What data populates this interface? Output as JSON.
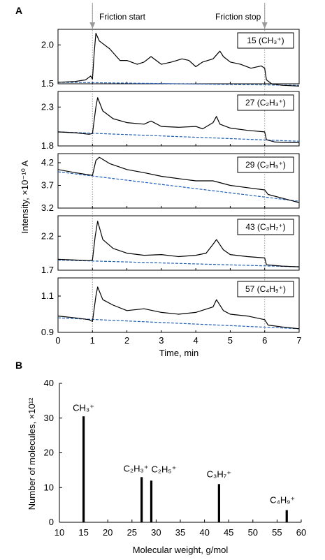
{
  "chart_data": [
    {
      "type": "line",
      "panel_label": "A",
      "annotations": [
        "Friction start",
        "Friction stop"
      ],
      "marker_times": [
        1,
        6
      ],
      "xlabel": "Time, min",
      "ylabel": "Intensity, ×10⁻¹⁰ A",
      "xlim": [
        0,
        7
      ],
      "xticks": [
        "0",
        "1",
        "2",
        "3",
        "4",
        "5",
        "6",
        "7"
      ],
      "subplots": [
        {
          "label": "15 (CH₃⁺)",
          "ylim": [
            1.5,
            2.2
          ],
          "yticks": [
            1.5,
            2.0
          ],
          "ytick_labels": [
            "1.5",
            "2.0"
          ],
          "baseline": {
            "x": [
              0,
              7
            ],
            "y": [
              1.52,
              1.48
            ]
          },
          "series": {
            "x": [
              0,
              0.5,
              0.8,
              0.95,
              1.0,
              1.05,
              1.1,
              1.2,
              1.5,
              1.8,
              2.0,
              2.3,
              2.5,
              2.7,
              3.0,
              3.3,
              3.6,
              3.8,
              4.0,
              4.2,
              4.5,
              4.7,
              4.8,
              5.0,
              5.3,
              5.6,
              5.9,
              6.0,
              6.05,
              6.2,
              6.5,
              7.0
            ],
            "y": [
              1.52,
              1.53,
              1.55,
              1.6,
              1.56,
              1.9,
              2.15,
              2.05,
              1.95,
              1.8,
              1.8,
              1.75,
              1.78,
              1.85,
              1.75,
              1.78,
              1.82,
              1.8,
              1.72,
              1.78,
              1.82,
              1.92,
              1.85,
              1.78,
              1.75,
              1.7,
              1.73,
              1.7,
              1.55,
              1.5,
              1.48,
              1.47
            ]
          }
        },
        {
          "label": "27 (C₂H₃⁺)",
          "ylim": [
            1.8,
            2.5
          ],
          "yticks": [
            1.8,
            2.3
          ],
          "ytick_labels": [
            "1.8",
            "2.3"
          ],
          "baseline": {
            "x": [
              0,
              7
            ],
            "y": [
              1.98,
              1.86
            ]
          },
          "series": {
            "x": [
              0,
              0.5,
              0.9,
              1.0,
              1.1,
              1.15,
              1.3,
              1.6,
              2.0,
              2.5,
              2.7,
              3.0,
              3.5,
              4.0,
              4.2,
              4.5,
              4.6,
              4.7,
              5.0,
              5.5,
              6.0,
              6.05,
              6.3,
              7.0
            ],
            "y": [
              1.98,
              1.97,
              1.95,
              1.96,
              2.3,
              2.42,
              2.25,
              2.15,
              2.1,
              2.08,
              2.12,
              2.05,
              2.04,
              2.05,
              2.02,
              2.1,
              2.18,
              2.08,
              2.03,
              2.0,
              1.98,
              1.88,
              1.85,
              1.84
            ]
          }
        },
        {
          "label": "29 (C₂H₅⁺)",
          "ylim": [
            3.2,
            4.4
          ],
          "yticks": [
            3.2,
            3.7,
            4.2
          ],
          "ytick_labels": [
            "3.2",
            "3.7",
            "4.2"
          ],
          "baseline": {
            "x": [
              0,
              7
            ],
            "y": [
              4.0,
              3.35
            ]
          },
          "series": {
            "x": [
              0,
              0.5,
              1.0,
              1.1,
              1.2,
              1.5,
              2.0,
              2.5,
              3.0,
              3.5,
              4.0,
              4.5,
              5.0,
              5.5,
              6.0,
              6.1,
              6.5,
              7.0
            ],
            "y": [
              4.05,
              3.98,
              3.92,
              4.25,
              4.32,
              4.18,
              4.05,
              3.98,
              3.9,
              3.85,
              3.8,
              3.8,
              3.7,
              3.65,
              3.6,
              3.5,
              3.42,
              3.32
            ]
          }
        },
        {
          "label": "43 (C₃H₇⁺)",
          "ylim": [
            1.7,
            2.5
          ],
          "yticks": [
            1.7,
            2.2
          ],
          "ytick_labels": [
            "1.7",
            "2.2"
          ],
          "baseline": {
            "x": [
              0,
              7
            ],
            "y": [
              1.85,
              1.75
            ]
          },
          "series": {
            "x": [
              0,
              0.5,
              0.9,
              1.0,
              1.08,
              1.15,
              1.3,
              1.6,
              2.0,
              2.5,
              3.0,
              3.5,
              4.0,
              4.3,
              4.5,
              4.6,
              4.8,
              5.0,
              5.5,
              6.0,
              6.05,
              6.5,
              7.0
            ],
            "y": [
              1.86,
              1.85,
              1.84,
              1.85,
              2.2,
              2.42,
              2.15,
              2.02,
              1.95,
              1.92,
              1.93,
              1.9,
              1.92,
              1.95,
              2.08,
              2.15,
              2.0,
              1.93,
              1.9,
              1.88,
              1.78,
              1.76,
              1.75
            ]
          }
        },
        {
          "label": "57 (C₄H₉⁺)",
          "ylim": [
            0.9,
            1.2
          ],
          "yticks": [
            0.9,
            1.1
          ],
          "ytick_labels": [
            "0.9",
            "1.1"
          ],
          "baseline": {
            "x": [
              0,
              7
            ],
            "y": [
              0.98,
              0.92
            ]
          },
          "series": {
            "x": [
              0,
              0.5,
              0.9,
              1.0,
              1.1,
              1.15,
              1.3,
              1.6,
              2.0,
              2.5,
              3.0,
              3.5,
              4.0,
              4.5,
              4.6,
              4.8,
              5.0,
              5.5,
              6.0,
              6.1,
              6.5,
              7.0
            ],
            "y": [
              0.99,
              0.98,
              0.97,
              0.96,
              1.1,
              1.15,
              1.08,
              1.05,
              1.02,
              1.03,
              1.01,
              1.0,
              1.01,
              1.04,
              1.08,
              1.02,
              1.0,
              0.99,
              0.97,
              0.94,
              0.93,
              0.92
            ]
          }
        }
      ],
      "colors": {
        "trace": "#000000",
        "baseline": "#1f5fbf",
        "marker": "#9a9a9a"
      }
    },
    {
      "type": "bar",
      "panel_label": "B",
      "xlabel": "Molecular weight, g/mol",
      "ylabel": "Number of molecules, ×10¹²",
      "xlim": [
        10,
        60
      ],
      "ylim": [
        0,
        40
      ],
      "xticks": [
        "10",
        "15",
        "20",
        "25",
        "30",
        "35",
        "40",
        "45",
        "50",
        "55",
        "60"
      ],
      "yticks": [
        "0",
        "10",
        "20",
        "30",
        "40"
      ],
      "x": [
        15,
        27,
        29,
        43,
        57
      ],
      "values": [
        30.5,
        13,
        12,
        11,
        3.5
      ],
      "bar_labels": [
        "CH₃⁺",
        "C₂H₃⁺",
        "C₂H₅⁺",
        "C₃H₇⁺",
        "C₄H₉⁺"
      ],
      "colors": {
        "bar": "#000000"
      }
    }
  ]
}
